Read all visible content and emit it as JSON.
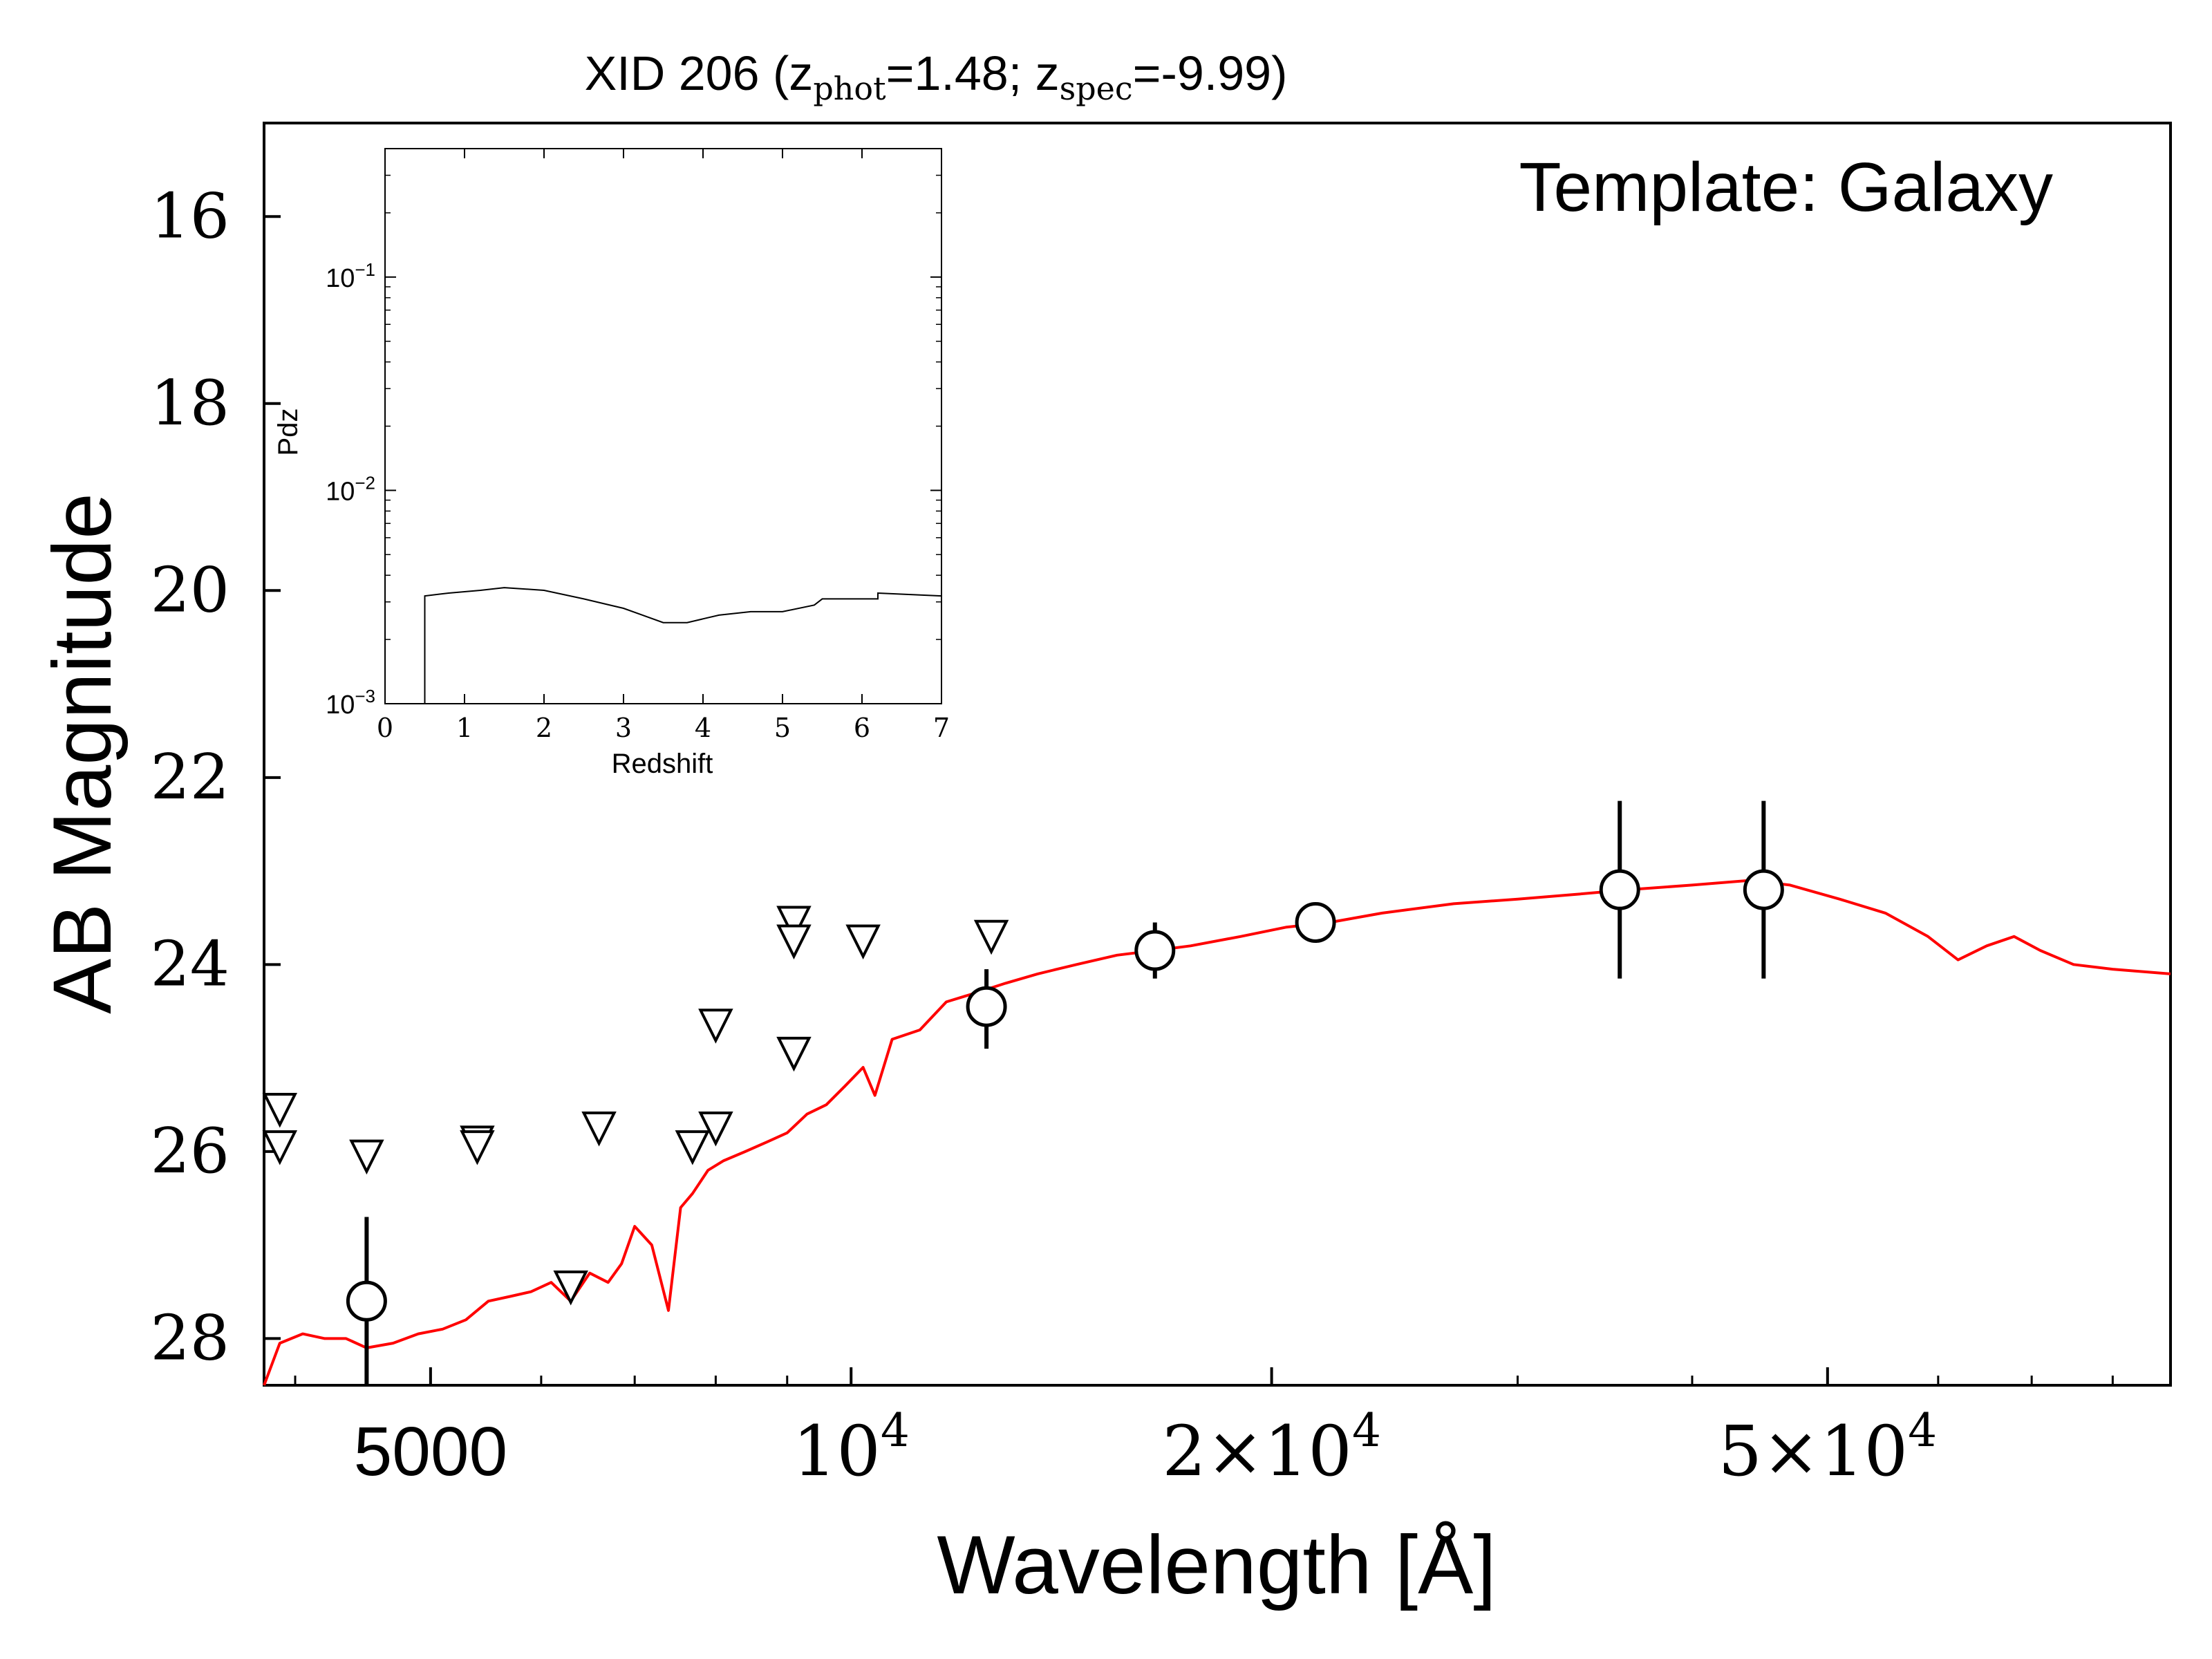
{
  "chart_data": {
    "type": "scatter",
    "title_main": "XID 206 (z",
    "title_sub1": "phot",
    "title_mid": "=1.48; z",
    "title_sub2": "spec",
    "title_end": "=-9.99)",
    "annotation": "Template: Galaxy",
    "xlabel": "Wavelength [Å]",
    "ylabel": "AB Magnitude",
    "x_scale": "log",
    "xlim": [
      3800,
      88000
    ],
    "ylim": [
      28.5,
      15
    ],
    "y_inverted": true,
    "y_ticks": [
      16,
      18,
      20,
      22,
      24,
      26,
      28
    ],
    "y_tick_labels": [
      "16",
      "18",
      "20",
      "22",
      "24",
      "26",
      "28"
    ],
    "x_ticks": [
      {
        "value": 5000,
        "label": "5000",
        "base": "",
        "exp": ""
      },
      {
        "value": 10000,
        "label": "",
        "base": "10",
        "exp": "4"
      },
      {
        "value": 20000,
        "label": "",
        "base": "2×10",
        "exp": "4"
      },
      {
        "value": 50000,
        "label": "",
        "base": "5×10",
        "exp": "4"
      }
    ],
    "colors": {
      "template": "#ff0000",
      "points": "#000000"
    },
    "detections": [
      {
        "x": 4500,
        "y": 27.6,
        "yerr_low": 0.9,
        "yerr_high": 0.9
      },
      {
        "x": 12500,
        "y": 24.45,
        "yerr_low": 0.45,
        "yerr_high": 0.4
      },
      {
        "x": 16500,
        "y": 23.85,
        "yerr_low": 0.3,
        "yerr_high": 0.3
      },
      {
        "x": 21500,
        "y": 23.55,
        "yerr_low": 0.2,
        "yerr_high": 0.2
      },
      {
        "x": 35500,
        "y": 23.2,
        "yerr_low": 0.95,
        "yerr_high": 0.95
      },
      {
        "x": 45000,
        "y": 23.2,
        "yerr_low": 0.95,
        "yerr_high": 0.95
      }
    ],
    "upper_limits": [
      {
        "x": 3900,
        "y": 25.55
      },
      {
        "x": 3900,
        "y": 25.95
      },
      {
        "x": 4500,
        "y": 26.05
      },
      {
        "x": 5400,
        "y": 25.9
      },
      {
        "x": 5400,
        "y": 25.95
      },
      {
        "x": 6300,
        "y": 27.45
      },
      {
        "x": 6600,
        "y": 25.75
      },
      {
        "x": 7700,
        "y": 25.95
      },
      {
        "x": 8000,
        "y": 24.65
      },
      {
        "x": 8000,
        "y": 25.75
      },
      {
        "x": 9100,
        "y": 23.55
      },
      {
        "x": 9100,
        "y": 23.75
      },
      {
        "x": 9100,
        "y": 24.95
      },
      {
        "x": 10200,
        "y": 23.75
      },
      {
        "x": 12600,
        "y": 23.7
      }
    ],
    "template_sed": [
      [
        3800,
        28.5
      ],
      [
        3900,
        28.05
      ],
      [
        4050,
        27.95
      ],
      [
        4200,
        28.0
      ],
      [
        4350,
        28.0
      ],
      [
        4500,
        28.1
      ],
      [
        4700,
        28.05
      ],
      [
        4900,
        27.95
      ],
      [
        5100,
        27.9
      ],
      [
        5300,
        27.8
      ],
      [
        5500,
        27.6
      ],
      [
        5700,
        27.55
      ],
      [
        5900,
        27.5
      ],
      [
        6100,
        27.4
      ],
      [
        6300,
        27.6
      ],
      [
        6500,
        27.3
      ],
      [
        6700,
        27.4
      ],
      [
        6850,
        27.2
      ],
      [
        7000,
        26.8
      ],
      [
        7200,
        27.0
      ],
      [
        7400,
        27.7
      ],
      [
        7550,
        26.6
      ],
      [
        7700,
        26.45
      ],
      [
        7900,
        26.2
      ],
      [
        8100,
        26.1
      ],
      [
        8400,
        26.0
      ],
      [
        8700,
        25.9
      ],
      [
        9000,
        25.8
      ],
      [
        9300,
        25.6
      ],
      [
        9600,
        25.5
      ],
      [
        9900,
        25.3
      ],
      [
        10200,
        25.1
      ],
      [
        10400,
        25.4
      ],
      [
        10700,
        24.8
      ],
      [
        11200,
        24.7
      ],
      [
        11700,
        24.4
      ],
      [
        12300,
        24.3
      ],
      [
        12900,
        24.2
      ],
      [
        13600,
        24.1
      ],
      [
        14500,
        24.0
      ],
      [
        15500,
        23.9
      ],
      [
        16500,
        23.85
      ],
      [
        17500,
        23.8
      ],
      [
        19000,
        23.7
      ],
      [
        20500,
        23.6
      ],
      [
        22000,
        23.55
      ],
      [
        24000,
        23.45
      ],
      [
        27000,
        23.35
      ],
      [
        30000,
        23.3
      ],
      [
        33000,
        23.25
      ],
      [
        36000,
        23.2
      ],
      [
        40000,
        23.15
      ],
      [
        44000,
        23.1
      ],
      [
        47000,
        23.15
      ],
      [
        51000,
        23.3
      ],
      [
        55000,
        23.45
      ],
      [
        59000,
        23.7
      ],
      [
        62000,
        23.95
      ],
      [
        65000,
        23.8
      ],
      [
        68000,
        23.7
      ],
      [
        71000,
        23.85
      ],
      [
        75000,
        24.0
      ],
      [
        80000,
        24.05
      ],
      [
        88000,
        24.1
      ]
    ],
    "inset": {
      "xlabel": "Redshift",
      "ylabel": "Pdz",
      "xlim": [
        0,
        7
      ],
      "y_scale": "log",
      "ylim": [
        0.001,
        0.4
      ],
      "x_ticks": [
        0,
        1,
        2,
        3,
        4,
        5,
        6,
        7
      ],
      "y_ticks": [
        {
          "value": 0.1,
          "base": "10",
          "exp": "−1"
        },
        {
          "value": 0.01,
          "base": "10",
          "exp": "−2"
        },
        {
          "value": 0.001,
          "base": "10",
          "exp": "−3"
        }
      ],
      "pdz": [
        [
          0.5,
          0.001
        ],
        [
          0.5,
          0.0032
        ],
        [
          0.8,
          0.0033
        ],
        [
          1.2,
          0.0034
        ],
        [
          1.5,
          0.0035
        ],
        [
          2.0,
          0.0034
        ],
        [
          2.5,
          0.0031
        ],
        [
          3.0,
          0.0028
        ],
        [
          3.5,
          0.0024
        ],
        [
          3.8,
          0.0024
        ],
        [
          4.2,
          0.0026
        ],
        [
          4.6,
          0.0027
        ],
        [
          5.0,
          0.0027
        ],
        [
          5.4,
          0.0029
        ],
        [
          5.5,
          0.0031
        ],
        [
          6.0,
          0.0031
        ],
        [
          6.2,
          0.0031
        ],
        [
          6.2,
          0.0033
        ],
        [
          7.0,
          0.0032
        ]
      ]
    }
  }
}
